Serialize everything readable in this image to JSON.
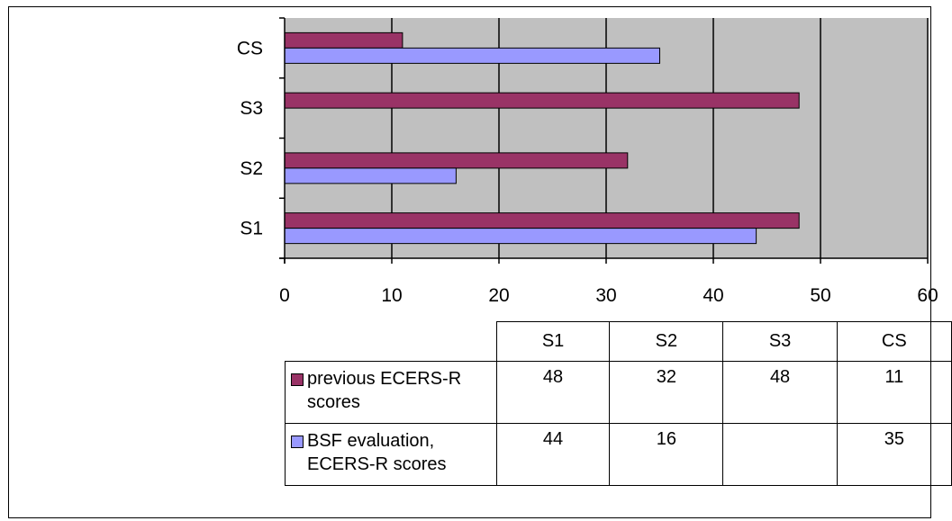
{
  "chart_data": {
    "type": "bar",
    "orientation": "horizontal",
    "categories": [
      "S1",
      "S2",
      "S3",
      "CS"
    ],
    "series": [
      {
        "name": "previous ECERS-R scores",
        "values": [
          48,
          32,
          48,
          11
        ],
        "color": "#993366"
      },
      {
        "name": "BSF evaluation, ECERS-R scores",
        "values": [
          44,
          16,
          null,
          35
        ],
        "color": "#9999ff"
      }
    ],
    "xlim": [
      0,
      60
    ],
    "x_ticks": [
      0,
      10,
      20,
      30,
      40,
      50,
      60
    ],
    "grid": true,
    "plot_background": "#c0c0c0",
    "legend": "data-table"
  },
  "table": {
    "rows": [
      {
        "label": "previous ECERS-R scores",
        "cells": [
          "48",
          "32",
          "48",
          "11"
        ]
      },
      {
        "label": "BSF evaluation, ECERS-R scores",
        "cells": [
          "44",
          "16",
          "",
          "35"
        ]
      }
    ]
  }
}
